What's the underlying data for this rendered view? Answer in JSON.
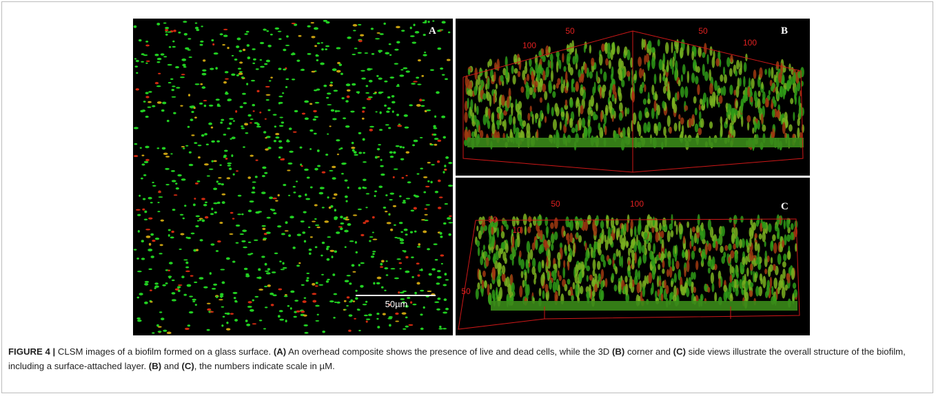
{
  "figure": {
    "panels": [
      {
        "label": "A",
        "scale_bar": "50µm"
      },
      {
        "label": "B",
        "numbers": [
          "50",
          "50",
          "100",
          "100"
        ]
      },
      {
        "label": "C",
        "numbers": [
          "50",
          "100",
          "50",
          "10",
          "50"
        ]
      }
    ],
    "caption": [
      {
        "text": "FIGURE 4 |",
        "bold": true
      },
      {
        "text": " CLSM images of a biofilm formed on a glass surface. ",
        "bold": false
      },
      {
        "text": "(A)",
        "bold": true
      },
      {
        "text": " An overhead composite shows the presence of live and dead cells, while the 3D ",
        "bold": false
      },
      {
        "text": "(B)",
        "bold": true
      },
      {
        "text": " corner and ",
        "bold": false
      },
      {
        "text": "(C)",
        "bold": true
      },
      {
        "text": " side views illustrate the overall structure of the biofilm, including a surface-attached layer. ",
        "bold": false
      },
      {
        "text": "(B)",
        "bold": true
      },
      {
        "text": " and ",
        "bold": false
      },
      {
        "text": "(C)",
        "bold": true
      },
      {
        "text": ", the numbers indicate scale in µM.",
        "bold": false
      }
    ]
  }
}
